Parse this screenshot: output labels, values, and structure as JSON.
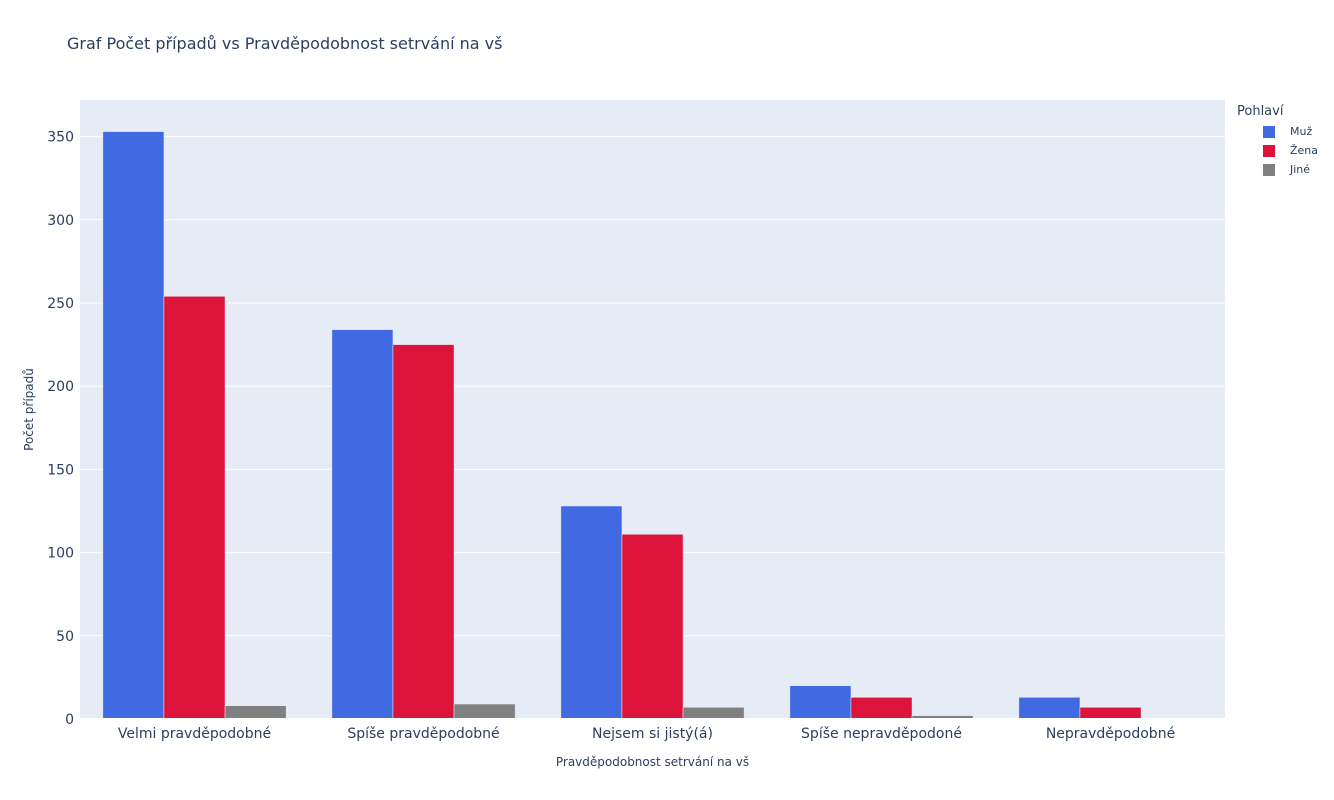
{
  "chart_data": {
    "type": "bar",
    "title": "Graf Počet případů vs Pravděpodobnost setrvání na vš",
    "xlabel": "Pravděpodobnost setrvání na vš",
    "ylabel": "Počet případů",
    "categories": [
      "Velmi pravděpodobné",
      "Spíše pravděpodobné",
      "Nejsem si jistý(á)",
      "Spíše nepravděpodoné",
      "Nepravděpodobné"
    ],
    "series": [
      {
        "name": "Muž",
        "color": "#4169e1",
        "values": [
          353,
          234,
          128,
          20,
          13
        ]
      },
      {
        "name": "Žena",
        "color": "#dc143c",
        "values": [
          254,
          225,
          111,
          13,
          7
        ]
      },
      {
        "name": "Jiné",
        "color": "#808080",
        "values": [
          8,
          9,
          7,
          2,
          0
        ]
      }
    ],
    "ylim": [
      0,
      372
    ],
    "yticks": [
      0,
      50,
      100,
      150,
      200,
      250,
      300,
      350
    ],
    "grid": true,
    "legend_title": "Pohlaví",
    "legend_position": "top-right",
    "barmode": "group",
    "plot_bg": "#e5ecf6"
  }
}
